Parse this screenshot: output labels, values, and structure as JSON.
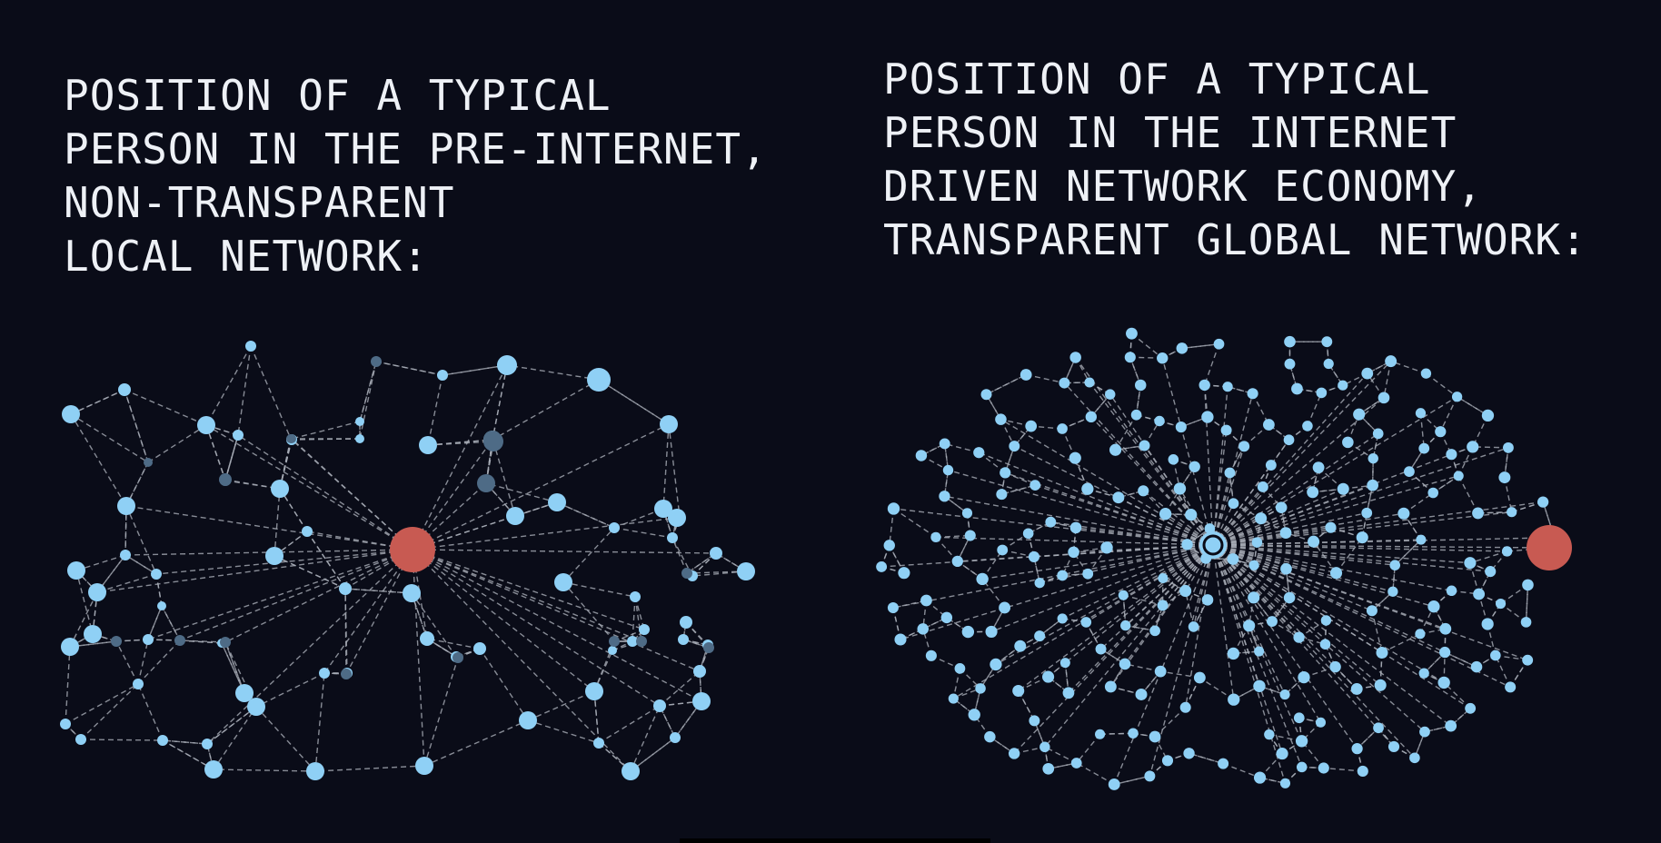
{
  "panels": {
    "left": {
      "title_lines": [
        "POSITION OF A TYPICAL",
        "PERSON IN THE PRE-INTERNET,",
        "NON-TRANSPARENT",
        "LOCAL NETWORK:"
      ]
    },
    "right": {
      "title_lines": [
        "POSITION OF A TYPICAL",
        "PERSON IN THE INTERNET",
        "DRIVEN NETWORK ECONOMY,",
        "TRANSPARENT GLOBAL NETWORK:"
      ]
    }
  },
  "colors": {
    "background": "#0a0c18",
    "node": "#8fd0f5",
    "node_faded": "#4e6b86",
    "person": "#c85a52",
    "edge": "#a8acb6",
    "text": "#eef1f6"
  }
}
